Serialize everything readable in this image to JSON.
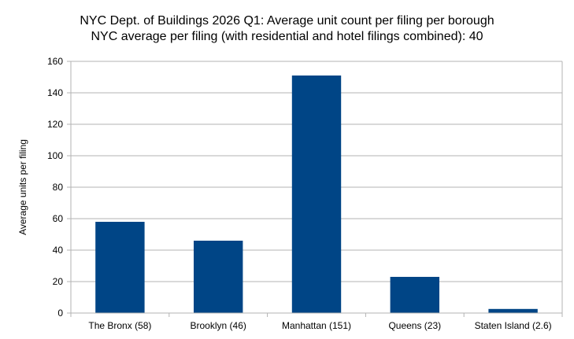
{
  "chart_data": {
    "type": "bar",
    "title": "NYC Dept. of Buildings 2026 Q1: Average unit count per filing per borough",
    "subtitle": "NYC average per filing (with residential and hotel filings combined): 40",
    "xlabel": "",
    "ylabel": "Average units per filing",
    "categories": [
      "The Bronx (58)",
      "Brooklyn (46)",
      "Manhattan (151)",
      "Queens (23)",
      "Staten Island (2.6)"
    ],
    "values": [
      58,
      46,
      151,
      23,
      2.6
    ],
    "ylim": [
      0,
      160
    ],
    "yticks": [
      0,
      20,
      40,
      60,
      80,
      100,
      120,
      140,
      160
    ],
    "grid": true,
    "legend": "none",
    "bar_color": "#004586",
    "grid_color": "#b3b3b3"
  }
}
